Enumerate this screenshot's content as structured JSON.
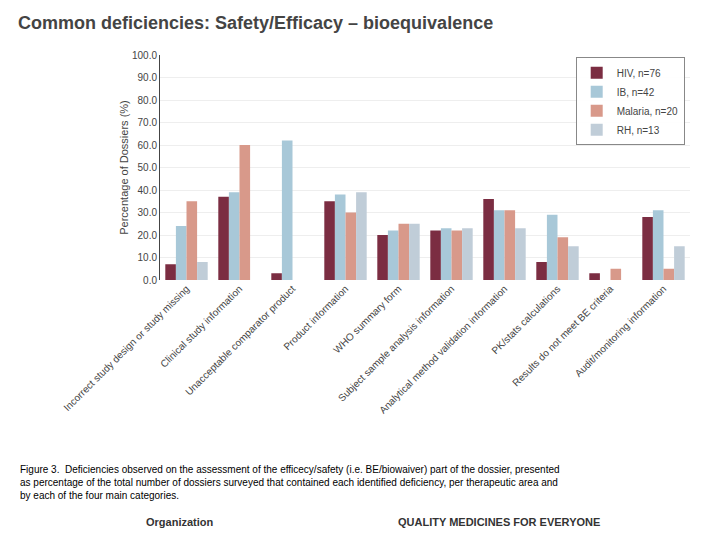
{
  "chart_data": {
    "type": "bar",
    "title": "Common deficiencies: Safety/Efficacy – bioequivalence",
    "categories": [
      "Incorrect study design or study missing",
      "Clinical study information",
      "Unacceptable comparator product",
      "Product information",
      "WHO summary form",
      "Subject sample analysis information",
      "Analytical method validation information",
      "PK/stats calculations",
      "Results do not meet BE criteria",
      "Audit/monitoring information"
    ],
    "series": [
      {
        "name": "HIV, n=76",
        "color": "#7B2D42",
        "values": [
          7,
          37,
          3,
          35,
          20,
          22,
          36,
          8,
          3,
          28
        ]
      },
      {
        "name": "IB, n=42",
        "color": "#A8C8D8",
        "values": [
          24,
          39,
          62,
          38,
          22,
          23,
          31,
          29,
          0,
          31
        ]
      },
      {
        "name": "Malaria, n=20",
        "color": "#D8998A",
        "values": [
          35,
          60,
          0,
          30,
          25,
          22,
          31,
          19,
          5,
          5
        ]
      },
      {
        "name": "RH, n=13",
        "color": "#C0CDD8",
        "values": [
          8,
          0,
          0,
          39,
          25,
          23,
          23,
          15,
          0,
          15
        ]
      }
    ],
    "ylabel": "Percentage of Dossiers (%)",
    "ylim": [
      0,
      100
    ],
    "yticks": [
      {
        "value": 0,
        "label": "0.0"
      },
      {
        "value": 10,
        "label": "10.0"
      },
      {
        "value": 20,
        "label": "20.0"
      },
      {
        "value": 30,
        "label": "30.0"
      },
      {
        "value": 40,
        "label": "40.0"
      },
      {
        "value": 50,
        "label": "50.0"
      },
      {
        "value": 60,
        "label": "60.0"
      },
      {
        "value": 70,
        "label": "70.0"
      },
      {
        "value": 80,
        "label": "80.0"
      },
      {
        "value": 90,
        "label": "90.0"
      },
      {
        "value": 100,
        "label": "100.0"
      }
    ],
    "grid": true,
    "legend": "upper right",
    "annotations": [
      "Figure 3.  Deficiencies observed on the assessment of the efficecy/safety (i.e. BE/biowaiver) part of the dossier, presented\nas percentage of the total number of dossiers surveyed that contained each identified deficiency, per therapeutic area and\nby each of the four main categories.",
      "Organization",
      "QUALITY MEDICINES FOR EVERYONE"
    ]
  }
}
